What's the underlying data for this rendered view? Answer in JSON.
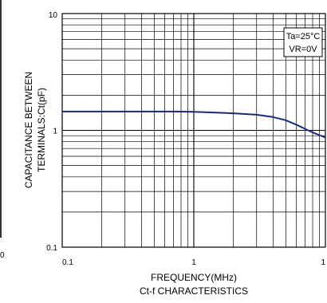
{
  "chart_data": {
    "type": "line",
    "title": "Ct-f CHARACTERISTICS",
    "xlabel": "FREQUENCY(MHz)",
    "ylabel_lines": [
      "CAPACITANCE BETWEEN",
      "TERMINALS:Ct(pF)"
    ],
    "x_scale": "log",
    "y_scale": "log",
    "xlim": [
      0.1,
      10
    ],
    "ylim": [
      0.1,
      10
    ],
    "x_tick_labels": [
      "0.1",
      "1",
      "1"
    ],
    "y_tick_labels": [
      "0.1",
      "1",
      "10"
    ],
    "legend_lines": [
      "Ta=25°C",
      "VR=0V"
    ],
    "legend_placement": "top-right",
    "grid": true,
    "series": [
      {
        "color": "#1a2a7a",
        "x": [
          0.1,
          0.2,
          0.4,
          0.7,
          1.0,
          1.5,
          2.0,
          3.0,
          4.0,
          5.0,
          6.0,
          7.0,
          8.0,
          9.0,
          10.0
        ],
        "y": [
          1.45,
          1.45,
          1.45,
          1.45,
          1.44,
          1.42,
          1.4,
          1.36,
          1.3,
          1.22,
          1.12,
          1.03,
          0.96,
          0.91,
          0.87
        ]
      }
    ],
    "edge_fragment_label": "0"
  }
}
